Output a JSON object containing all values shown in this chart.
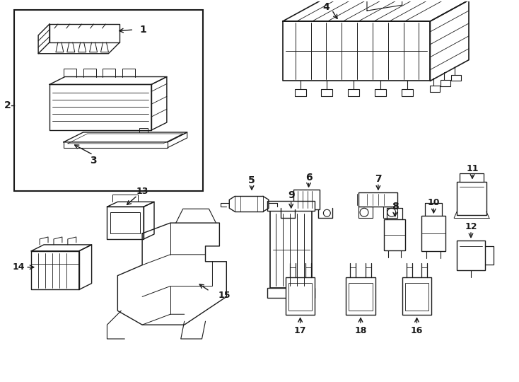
{
  "bg_color": "#ffffff",
  "line_color": "#1a1a1a",
  "lw": 1.0,
  "fig_width": 7.34,
  "fig_height": 5.4,
  "dpi": 100
}
